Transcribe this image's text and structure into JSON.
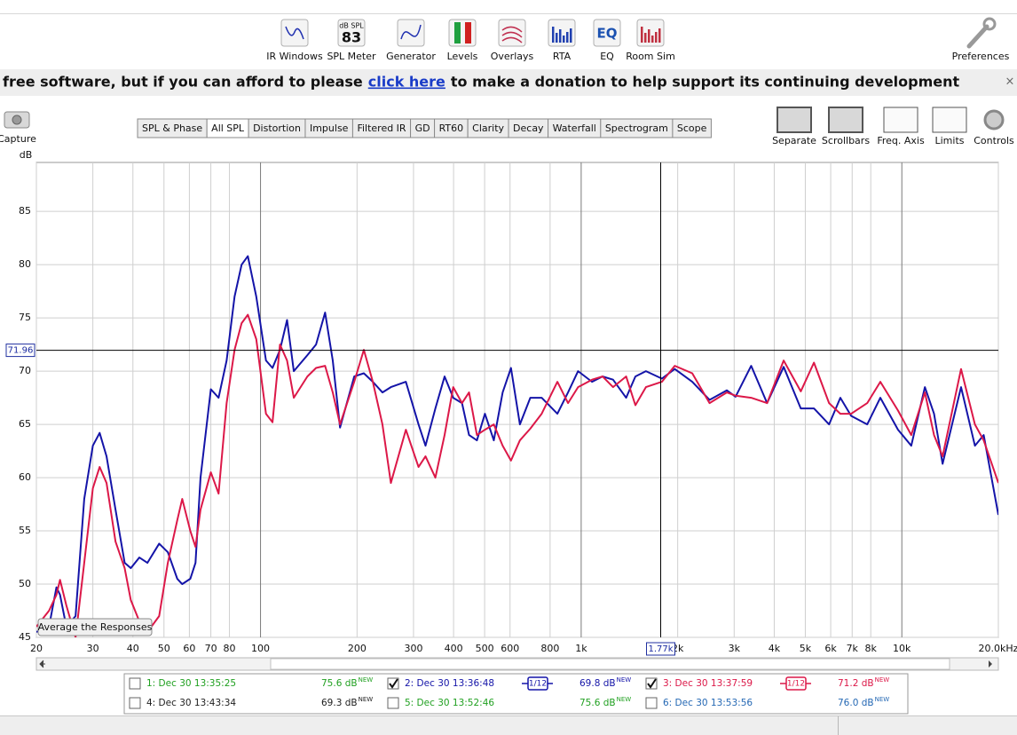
{
  "toolbar": {
    "items": [
      {
        "label": "IR Windows"
      },
      {
        "label": "SPL Meter",
        "icon_text": [
          "dB SPL",
          "83"
        ]
      },
      {
        "label": "Generator"
      },
      {
        "label": "Levels"
      },
      {
        "label": "Overlays"
      },
      {
        "label": "RTA"
      },
      {
        "label": "EQ",
        "icon_text": [
          "EQ"
        ]
      },
      {
        "label": "Room Sim"
      }
    ],
    "preferences": "Preferences"
  },
  "banner": {
    "before": "free software, but if you can afford to please",
    "link": "click here",
    "after": "to make a donation to help support its continuing development",
    "close": "×"
  },
  "capture": "Capture",
  "tabs": {
    "items": [
      "SPL & Phase",
      "All SPL",
      "Distortion",
      "Impulse",
      "Filtered IR",
      "GD",
      "RT60",
      "Clarity",
      "Decay",
      "Waterfall",
      "Spectrogram",
      "Scope"
    ],
    "selected": 1
  },
  "view_buttons": [
    "Separate",
    "Scrollbars",
    "Freq. Axis",
    "Limits",
    "Controls"
  ],
  "chart_data": {
    "type": "line",
    "y_label": "dB",
    "log_x": true,
    "grid": true,
    "xlim": [
      20,
      20000
    ],
    "ylim": [
      45,
      89.6
    ],
    "yticks": [
      45,
      50,
      55,
      60,
      65,
      70,
      75,
      80,
      85
    ],
    "xticks": [
      20,
      30,
      40,
      50,
      60,
      70,
      80,
      100,
      200,
      300,
      400,
      500,
      600,
      800,
      {
        "value": 1000,
        "label": "1k"
      },
      {
        "value": 2000,
        "label": "2k"
      },
      {
        "value": 3000,
        "label": "3k"
      },
      {
        "value": 4000,
        "label": "4k"
      },
      {
        "value": 5000,
        "label": "5k"
      },
      {
        "value": 6000,
        "label": "6k"
      },
      {
        "value": 7000,
        "label": "7k"
      },
      {
        "value": 8000,
        "label": "8k"
      },
      {
        "value": 10000,
        "label": "10k"
      },
      {
        "value": 20000,
        "label": "20.0kHz"
      }
    ],
    "cursor": {
      "x": {
        "value": 1770,
        "label": "1.77k"
      },
      "y": 71.96
    },
    "x": [
      20,
      21.9,
      23.1,
      23.7,
      24.8,
      26.5,
      28.2,
      30,
      31.5,
      33.1,
      35.3,
      37.7,
      39.4,
      41.9,
      44.4,
      48.3,
      51.4,
      55,
      57,
      60.4,
      62.7,
      65,
      70,
      74,
      78.4,
      83,
      87.3,
      91.3,
      97,
      104,
      109,
      115,
      121,
      127,
      140,
      149,
      159,
      168,
      177,
      196,
      210,
      224,
      240,
      255,
      284,
      311,
      327,
      351,
      375,
      399,
      425,
      447,
      473,
      501,
      534,
      569,
      604,
      644,
      694,
      753,
      843,
      910,
      978,
      1081,
      1166,
      1257,
      1381,
      1476,
      1592,
      1785,
      1958,
      2220,
      2514,
      2845,
      3030,
      3390,
      3800,
      4280,
      4840,
      5320,
      5930,
      6430,
      6950,
      7800,
      8570,
      9730,
      10700,
      11800,
      12600,
      13400,
      15300,
      16900,
      18000,
      20000
    ],
    "series": [
      {
        "name": "2: Dec 30 13:36:48",
        "color": "#1414a8",
        "values": [
          45.5,
          46,
          49.7,
          49,
          46,
          47,
          58,
          63,
          64.2,
          62,
          57,
          52,
          51.5,
          52.5,
          52,
          53.8,
          53,
          50.5,
          50,
          50.5,
          52,
          60,
          68.3,
          67.5,
          71,
          77,
          80,
          80.8,
          77,
          71,
          70.3,
          72,
          74.8,
          70,
          71.5,
          72.5,
          75.5,
          71,
          64.7,
          69.5,
          69.8,
          69,
          68,
          68.5,
          69,
          65,
          63,
          66.5,
          69.5,
          67.5,
          67,
          64,
          63.5,
          66,
          63.5,
          68,
          70.3,
          65,
          67.5,
          67.5,
          66,
          68,
          70,
          69,
          69.5,
          69.2,
          67.5,
          69.5,
          70,
          69.3,
          70.2,
          69,
          67.3,
          68.2,
          67.6,
          70.5,
          67,
          70.4,
          66.5,
          66.5,
          65,
          67.5,
          65.8,
          65,
          67.5,
          64.5,
          63,
          68.5,
          66,
          61.3,
          68.5,
          63,
          64,
          56.5
        ]
      },
      {
        "name": "3: Dec 30 13:37:59",
        "color": "#dc1848",
        "values": [
          46,
          47.5,
          49,
          50.4,
          48,
          45,
          52,
          59,
          61,
          59.5,
          54,
          51.5,
          48.5,
          46.5,
          45.5,
          47,
          52,
          56,
          58,
          55,
          53.5,
          57,
          60.5,
          58.5,
          67,
          72,
          74.5,
          75.3,
          73,
          66,
          65.2,
          72.5,
          71,
          67.5,
          69.5,
          70.3,
          70.5,
          68,
          65,
          69,
          72,
          69,
          65,
          59.5,
          64.5,
          61,
          62,
          60,
          64,
          68.5,
          67,
          68,
          64,
          64.5,
          65,
          63,
          61.6,
          63.5,
          64.6,
          66,
          69,
          67,
          68.5,
          69.2,
          69.5,
          68.5,
          69.5,
          66.8,
          68.5,
          69,
          70.5,
          69.8,
          67,
          68,
          67.7,
          67.5,
          67,
          71,
          68.1,
          70.8,
          67,
          66,
          66,
          67,
          69,
          66.3,
          64,
          68,
          64,
          62,
          70.2,
          65,
          63.5,
          59.5
        ]
      }
    ]
  },
  "average_button": "Average the Responses",
  "measurements": {
    "tag": "NEW",
    "rows": [
      {
        "name": "1: Dec 30 13:35:25",
        "level": "75.6 dB",
        "checked": false,
        "color": "#20a020"
      },
      {
        "level": "69.8 dB",
        "checked": true,
        "smoothing": "1/12"
      },
      {
        "level": "71.2 dB",
        "checked": true,
        "smoothing": "1/12"
      },
      {
        "name": "4: Dec 30 13:43:34",
        "level": "69.3 dB",
        "checked": false,
        "color": "#202020"
      },
      {
        "name": "5: Dec 30 13:52:46",
        "level": "75.6 dB",
        "checked": false,
        "color": "#20a020"
      },
      {
        "name": "6: Dec 30 13:53:56",
        "level": "76.0 dB",
        "checked": false,
        "color": "#2468b4"
      }
    ]
  }
}
